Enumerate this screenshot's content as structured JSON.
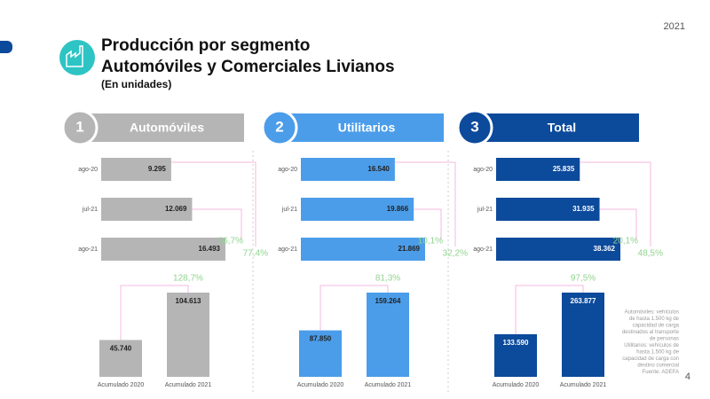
{
  "year": "2021",
  "title": "Producción por segmento",
  "title2": "Automóviles y Comerciales Livianos",
  "subtitle": "(En unidades)",
  "page_number": "4",
  "footnote": [
    "Automóviles: vehículos",
    "de hasta 1.500 kg de",
    "capacidad de carga",
    "destinados al transporte",
    "de personas",
    "Utilitarios: vehículos de",
    "hasta 1.500 kg de",
    "capacidad de carga con",
    "destino comercial",
    "Fuente: ADEFA"
  ],
  "chart_data": [
    {
      "type": "hbar",
      "panel_number": "1",
      "panel_title": "Automóviles",
      "categories": [
        "ago-20",
        "jul-21",
        "ago-21"
      ],
      "values": [
        9295,
        12069,
        16493
      ],
      "value_labels": [
        "9.295",
        "12.069",
        "16.493"
      ],
      "color": "#b5b5b5",
      "label_color": "#222222",
      "annotations": [
        "36,7%",
        "77,4%"
      ]
    },
    {
      "type": "bar",
      "categories": [
        "Acumulado 2020",
        "Acumulado 2021"
      ],
      "values": [
        45740,
        104613
      ],
      "value_labels": [
        "45.740",
        "104.613"
      ],
      "color": "#b5b5b5",
      "label_color": "#222222",
      "annotations": [
        "128,7%"
      ]
    },
    {
      "type": "hbar",
      "panel_number": "2",
      "panel_title": "Utilitarios",
      "categories": [
        "ago-20",
        "jul-21",
        "ago-21"
      ],
      "values": [
        16540,
        19866,
        21869
      ],
      "value_labels": [
        "16.540",
        "19.866",
        "21.869"
      ],
      "color": "#4b9de9",
      "label_color": "#222222",
      "annotations": [
        "10,1%",
        "32,2%"
      ]
    },
    {
      "type": "bar",
      "categories": [
        "Acumulado 2020",
        "Acumulado 2021"
      ],
      "values": [
        87850,
        159264
      ],
      "value_labels": [
        "87.850",
        "159.264"
      ],
      "color": "#4b9de9",
      "label_color": "#222222",
      "annotations": [
        "81,3%"
      ]
    },
    {
      "type": "hbar",
      "panel_number": "3",
      "panel_title": "Total",
      "categories": [
        "ago-20",
        "jul-21",
        "ago-21"
      ],
      "values": [
        25835,
        31935,
        38362
      ],
      "value_labels": [
        "25.835",
        "31.935",
        "38.362"
      ],
      "color": "#0c4a9b",
      "label_color": "#ffffff",
      "annotations": [
        "20,1%",
        "48,5%"
      ]
    },
    {
      "type": "bar",
      "categories": [
        "Acumulado 2020",
        "Acumulado 2021"
      ],
      "values": [
        133590,
        263877
      ],
      "value_labels": [
        "133.590",
        "263.877"
      ],
      "color": "#0c4a9b",
      "label_color": "#ffffff",
      "annotations": [
        "97,5%"
      ]
    }
  ]
}
